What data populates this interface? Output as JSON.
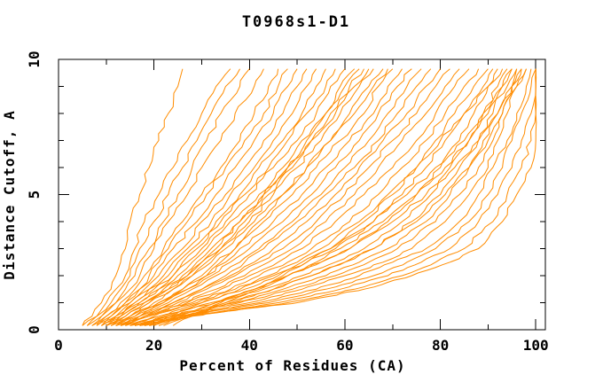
{
  "window": {
    "background": "#ffffff"
  },
  "chart_data": {
    "type": "line",
    "title": "T0968s1-D1",
    "xlabel": "Percent of Residues (CA)",
    "ylabel": "Distance Cutoff, A",
    "xlim": [
      0,
      102
    ],
    "ylim": [
      0,
      10
    ],
    "x_major_ticks": [
      0,
      20,
      40,
      60,
      80,
      100
    ],
    "x_minor_ticks": [
      10,
      30,
      50,
      70,
      90
    ],
    "y_major_ticks": [
      0,
      5,
      10
    ],
    "y_minor_ticks": [
      1,
      2,
      3,
      4,
      6,
      7,
      8,
      9
    ],
    "grid": false,
    "legend": "none",
    "line_color": "#FF8C00",
    "axis_color": "#000000",
    "cutoff_levels": [
      0.15,
      0.5,
      1,
      1.5,
      2,
      2.5,
      3,
      4,
      5,
      6,
      7,
      8,
      9,
      9.65
    ],
    "series": [
      {
        "name": "curve-01",
        "values": [
          5,
          7,
          9,
          11,
          12,
          13,
          14,
          15,
          17,
          19,
          21,
          23,
          25,
          26
        ]
      },
      {
        "name": "curve-02",
        "values": [
          5,
          8,
          10,
          12,
          14,
          15,
          16,
          18,
          21,
          24,
          27,
          30,
          33,
          36
        ]
      },
      {
        "name": "curve-03",
        "values": [
          6,
          8,
          11,
          13,
          15,
          16,
          17,
          20,
          23,
          26,
          29,
          32,
          35,
          38
        ]
      },
      {
        "name": "curve-04",
        "values": [
          6,
          9,
          12,
          14,
          16,
          17,
          19,
          22,
          25,
          28,
          31,
          34,
          38,
          40
        ]
      },
      {
        "name": "curve-05",
        "values": [
          7,
          9,
          12,
          15,
          17,
          18,
          20,
          23,
          27,
          30,
          34,
          37,
          41,
          43
        ]
      },
      {
        "name": "curve-06",
        "values": [
          7,
          10,
          13,
          16,
          18,
          20,
          22,
          26,
          30,
          34,
          38,
          41,
          44,
          46
        ]
      },
      {
        "name": "curve-07",
        "values": [
          8,
          10,
          14,
          17,
          19,
          21,
          23,
          27,
          31,
          35,
          39,
          43,
          46,
          48
        ]
      },
      {
        "name": "curve-08",
        "values": [
          8,
          11,
          14,
          17,
          20,
          22,
          24,
          29,
          33,
          37,
          41,
          45,
          48,
          50
        ]
      },
      {
        "name": "curve-09",
        "values": [
          9,
          11,
          15,
          18,
          21,
          23,
          26,
          30,
          35,
          39,
          43,
          47,
          50,
          52
        ]
      },
      {
        "name": "curve-10",
        "values": [
          9,
          12,
          15,
          19,
          22,
          24,
          27,
          32,
          36,
          41,
          45,
          49,
          52,
          54
        ]
      },
      {
        "name": "curve-11",
        "values": [
          10,
          12,
          16,
          19,
          23,
          25,
          28,
          33,
          38,
          42,
          47,
          51,
          54,
          56
        ]
      },
      {
        "name": "curve-12",
        "values": [
          10,
          13,
          16,
          20,
          24,
          26,
          29,
          34,
          39,
          44,
          48,
          52,
          56,
          58
        ]
      },
      {
        "name": "curve-13",
        "values": [
          8,
          12,
          17,
          21,
          24,
          27,
          30,
          35,
          40,
          45,
          50,
          54,
          57,
          60
        ]
      },
      {
        "name": "curve-14",
        "values": [
          9,
          13,
          17,
          21,
          25,
          28,
          31,
          36,
          42,
          47,
          51,
          56,
          59,
          62
        ]
      },
      {
        "name": "curve-15",
        "values": [
          11,
          14,
          18,
          22,
          26,
          29,
          32,
          38,
          43,
          48,
          53,
          57,
          61,
          64
        ]
      },
      {
        "name": "curve-16",
        "values": [
          11,
          15,
          19,
          23,
          27,
          30,
          34,
          40,
          45,
          50,
          55,
          59,
          63,
          66
        ]
      },
      {
        "name": "curve-17",
        "values": [
          12,
          15,
          20,
          24,
          28,
          32,
          35,
          41,
          47,
          52,
          57,
          61,
          65,
          68
        ]
      },
      {
        "name": "curve-18",
        "values": [
          12,
          16,
          21,
          26,
          30,
          33,
          37,
          43,
          49,
          54,
          59,
          64,
          67,
          70
        ]
      },
      {
        "name": "curve-19",
        "values": [
          10,
          15,
          21,
          26,
          31,
          35,
          38,
          45,
          51,
          56,
          61,
          66,
          69,
          72
        ]
      },
      {
        "name": "curve-20",
        "values": [
          11,
          16,
          22,
          27,
          32,
          36,
          40,
          47,
          53,
          58,
          63,
          67,
          71,
          74
        ]
      },
      {
        "name": "curve-21",
        "values": [
          13,
          17,
          23,
          28,
          33,
          38,
          42,
          49,
          55,
          60,
          65,
          69,
          73,
          76
        ]
      },
      {
        "name": "curve-22",
        "values": [
          13,
          18,
          24,
          30,
          35,
          39,
          43,
          50,
          56,
          62,
          67,
          71,
          75,
          78
        ]
      },
      {
        "name": "curve-23",
        "values": [
          12,
          17,
          24,
          30,
          36,
          41,
          45,
          52,
          58,
          63,
          68,
          73,
          77,
          80
        ]
      },
      {
        "name": "curve-24",
        "values": [
          14,
          18,
          25,
          31,
          37,
          42,
          47,
          54,
          60,
          65,
          70,
          75,
          79,
          82
        ]
      },
      {
        "name": "curve-25",
        "values": [
          14,
          19,
          26,
          33,
          39,
          44,
          49,
          56,
          62,
          67,
          72,
          77,
          81,
          84
        ]
      },
      {
        "name": "curve-26",
        "values": [
          12,
          18,
          27,
          34,
          40,
          46,
          51,
          58,
          64,
          70,
          75,
          79,
          83,
          86
        ]
      },
      {
        "name": "curve-27",
        "values": [
          15,
          20,
          28,
          36,
          42,
          48,
          53,
          61,
          67,
          72,
          77,
          81,
          85,
          88
        ]
      },
      {
        "name": "curve-28",
        "values": [
          13,
          19,
          29,
          37,
          44,
          50,
          55,
          63,
          69,
          75,
          79,
          83,
          87,
          90
        ]
      },
      {
        "name": "curve-29",
        "values": [
          15,
          21,
          30,
          39,
          46,
          52,
          58,
          66,
          72,
          77,
          81,
          85,
          89,
          91
        ]
      },
      {
        "name": "curve-30",
        "values": [
          16,
          22,
          32,
          41,
          48,
          55,
          61,
          69,
          75,
          80,
          84,
          87,
          90,
          93
        ]
      },
      {
        "name": "curve-31",
        "values": [
          14,
          21,
          33,
          43,
          51,
          58,
          64,
          72,
          78,
          82,
          86,
          89,
          92,
          94
        ]
      },
      {
        "name": "curve-32",
        "values": [
          16,
          23,
          35,
          45,
          53,
          60,
          66,
          74,
          80,
          84,
          88,
          91,
          93,
          95
        ]
      },
      {
        "name": "curve-33",
        "values": [
          17,
          24,
          37,
          47,
          56,
          63,
          69,
          77,
          82,
          86,
          89,
          92,
          95,
          96
        ]
      },
      {
        "name": "curve-34",
        "values": [
          15,
          23,
          38,
          49,
          58,
          65,
          71,
          79,
          84,
          88,
          91,
          93,
          95,
          97
        ]
      },
      {
        "name": "curve-35",
        "values": [
          17,
          25,
          40,
          51,
          60,
          68,
          74,
          81,
          86,
          90,
          92,
          94,
          96,
          98
        ]
      },
      {
        "name": "curve-36",
        "values": [
          18,
          26,
          42,
          54,
          63,
          70,
          77,
          84,
          88,
          91,
          94,
          96,
          98,
          99
        ]
      },
      {
        "name": "curve-37",
        "values": [
          16,
          25,
          44,
          56,
          66,
          73,
          79,
          86,
          90,
          93,
          95,
          97,
          99,
          100
        ]
      },
      {
        "name": "curve-38",
        "values": [
          18,
          27,
          46,
          59,
          69,
          76,
          82,
          88,
          92,
          95,
          97,
          99,
          100,
          100
        ]
      },
      {
        "name": "curve-39",
        "values": [
          19,
          28,
          48,
          62,
          72,
          79,
          85,
          91,
          94,
          97,
          99,
          100,
          100,
          100
        ]
      },
      {
        "name": "curve-40",
        "values": [
          17,
          27,
          50,
          64,
          74,
          82,
          88,
          93,
          96,
          99,
          100,
          100,
          100,
          100
        ]
      },
      {
        "name": "curve-41",
        "values": [
          24,
          28,
          35,
          42,
          48,
          54,
          59,
          68,
          75,
          81,
          86,
          90,
          94,
          96
        ]
      },
      {
        "name": "curve-42",
        "values": [
          20,
          25,
          33,
          41,
          48,
          55,
          61,
          70,
          77,
          83,
          88,
          92,
          95,
          97
        ]
      },
      {
        "name": "curve-43",
        "values": [
          19,
          23,
          30,
          38,
          45,
          51,
          57,
          66,
          73,
          79,
          85,
          89,
          93,
          95
        ]
      },
      {
        "name": "curve-44",
        "values": [
          21,
          26,
          36,
          45,
          53,
          60,
          66,
          75,
          81,
          86,
          90,
          93,
          96,
          98
        ]
      },
      {
        "name": "curve-45",
        "values": [
          10,
          14,
          19,
          24,
          28,
          31,
          34,
          39,
          44,
          49,
          53,
          58,
          62,
          65
        ]
      },
      {
        "name": "curve-46",
        "values": [
          13,
          17,
          22,
          27,
          31,
          34,
          37,
          42,
          47,
          52,
          57,
          62,
          66,
          69
        ]
      },
      {
        "name": "curve-47",
        "values": [
          9,
          13,
          18,
          23,
          27,
          30,
          33,
          38,
          43,
          48,
          52,
          56,
          60,
          63
        ]
      },
      {
        "name": "curve-48",
        "values": [
          22,
          27,
          34,
          41,
          47,
          52,
          57,
          64,
          70,
          75,
          80,
          85,
          90,
          92
        ]
      }
    ]
  }
}
